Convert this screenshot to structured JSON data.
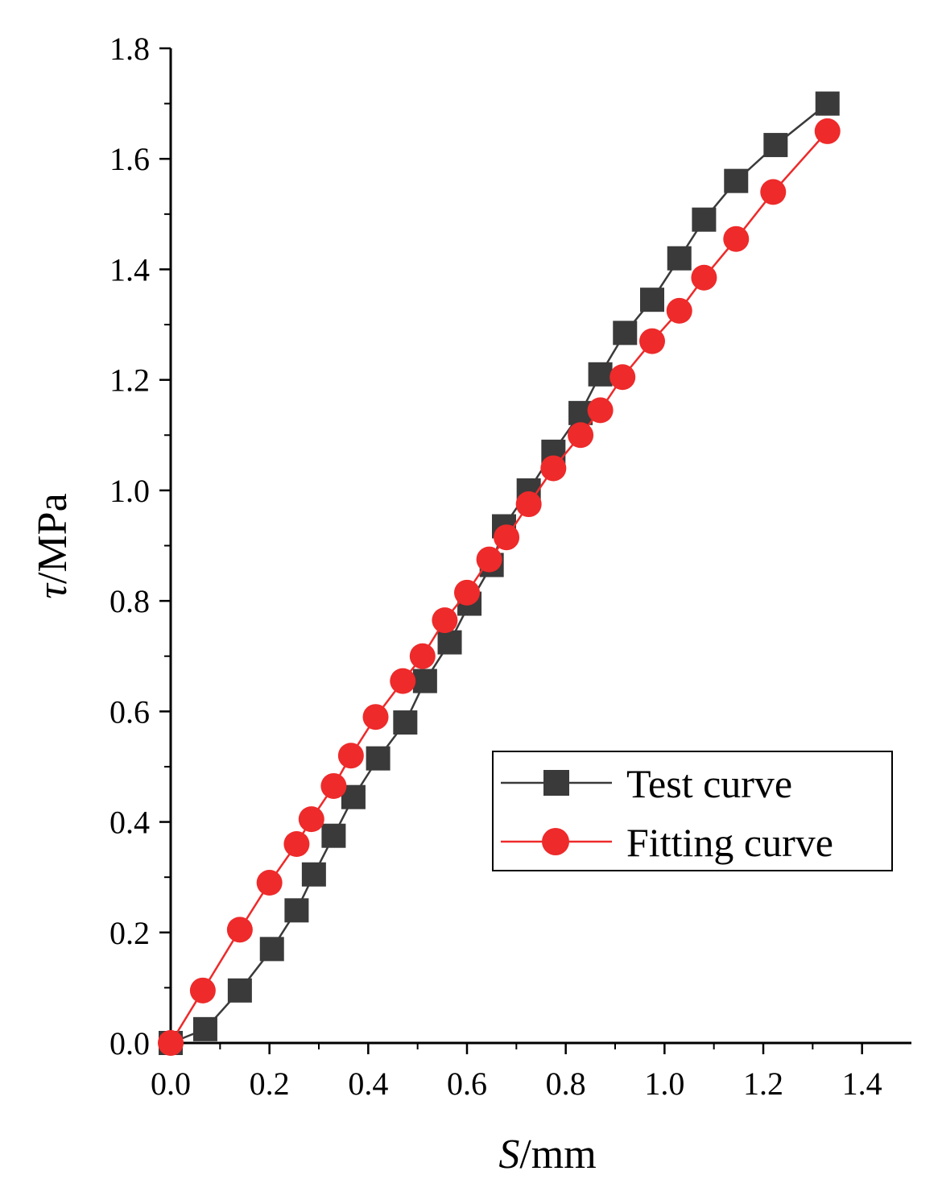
{
  "chart_data": {
    "type": "line",
    "xlabel": {
      "italic": "S",
      "unit": "/mm"
    },
    "ylabel": {
      "italic": "τ",
      "unit": "/MPa"
    },
    "xlim": [
      0.0,
      1.5
    ],
    "ylim": [
      0.0,
      1.8
    ],
    "xticks": [
      0.0,
      0.2,
      0.4,
      0.6,
      0.8,
      1.0,
      1.2,
      1.4
    ],
    "xtick_labels": [
      "0.0",
      "0.2",
      "0.4",
      "0.6",
      "0.8",
      "1.0",
      "1.2",
      "1.4"
    ],
    "yticks": [
      0.0,
      0.2,
      0.4,
      0.6,
      0.8,
      1.0,
      1.2,
      1.4,
      1.6,
      1.8
    ],
    "ytick_labels": [
      "0.0",
      "0.2",
      "0.4",
      "0.6",
      "0.8",
      "1.0",
      "1.2",
      "1.4",
      "1.6",
      "1.8"
    ],
    "grid": false,
    "legend_position": "right-middle",
    "series": [
      {
        "name": "Test curve",
        "color": "#3a3a3a",
        "marker": "square",
        "x": [
          0.0,
          0.07,
          0.14,
          0.205,
          0.255,
          0.29,
          0.33,
          0.37,
          0.42,
          0.475,
          0.515,
          0.565,
          0.605,
          0.65,
          0.675,
          0.725,
          0.775,
          0.83,
          0.87,
          0.92,
          0.975,
          1.03,
          1.08,
          1.145,
          1.225,
          1.33
        ],
        "y": [
          0.0,
          0.025,
          0.095,
          0.17,
          0.24,
          0.305,
          0.375,
          0.445,
          0.515,
          0.58,
          0.655,
          0.725,
          0.795,
          0.865,
          0.935,
          1.0,
          1.07,
          1.14,
          1.21,
          1.285,
          1.345,
          1.42,
          1.49,
          1.56,
          1.625,
          1.7
        ]
      },
      {
        "name": "Fitting curve",
        "color": "#ee2a2a",
        "marker": "circle",
        "x": [
          0.0,
          0.065,
          0.14,
          0.2,
          0.255,
          0.285,
          0.33,
          0.365,
          0.415,
          0.47,
          0.51,
          0.555,
          0.6,
          0.645,
          0.68,
          0.725,
          0.775,
          0.83,
          0.87,
          0.915,
          0.975,
          1.03,
          1.08,
          1.145,
          1.22,
          1.33
        ],
        "y": [
          0.0,
          0.095,
          0.205,
          0.29,
          0.36,
          0.405,
          0.465,
          0.52,
          0.59,
          0.655,
          0.7,
          0.765,
          0.815,
          0.875,
          0.915,
          0.975,
          1.04,
          1.1,
          1.145,
          1.205,
          1.27,
          1.325,
          1.385,
          1.455,
          1.54,
          1.65
        ]
      }
    ]
  }
}
